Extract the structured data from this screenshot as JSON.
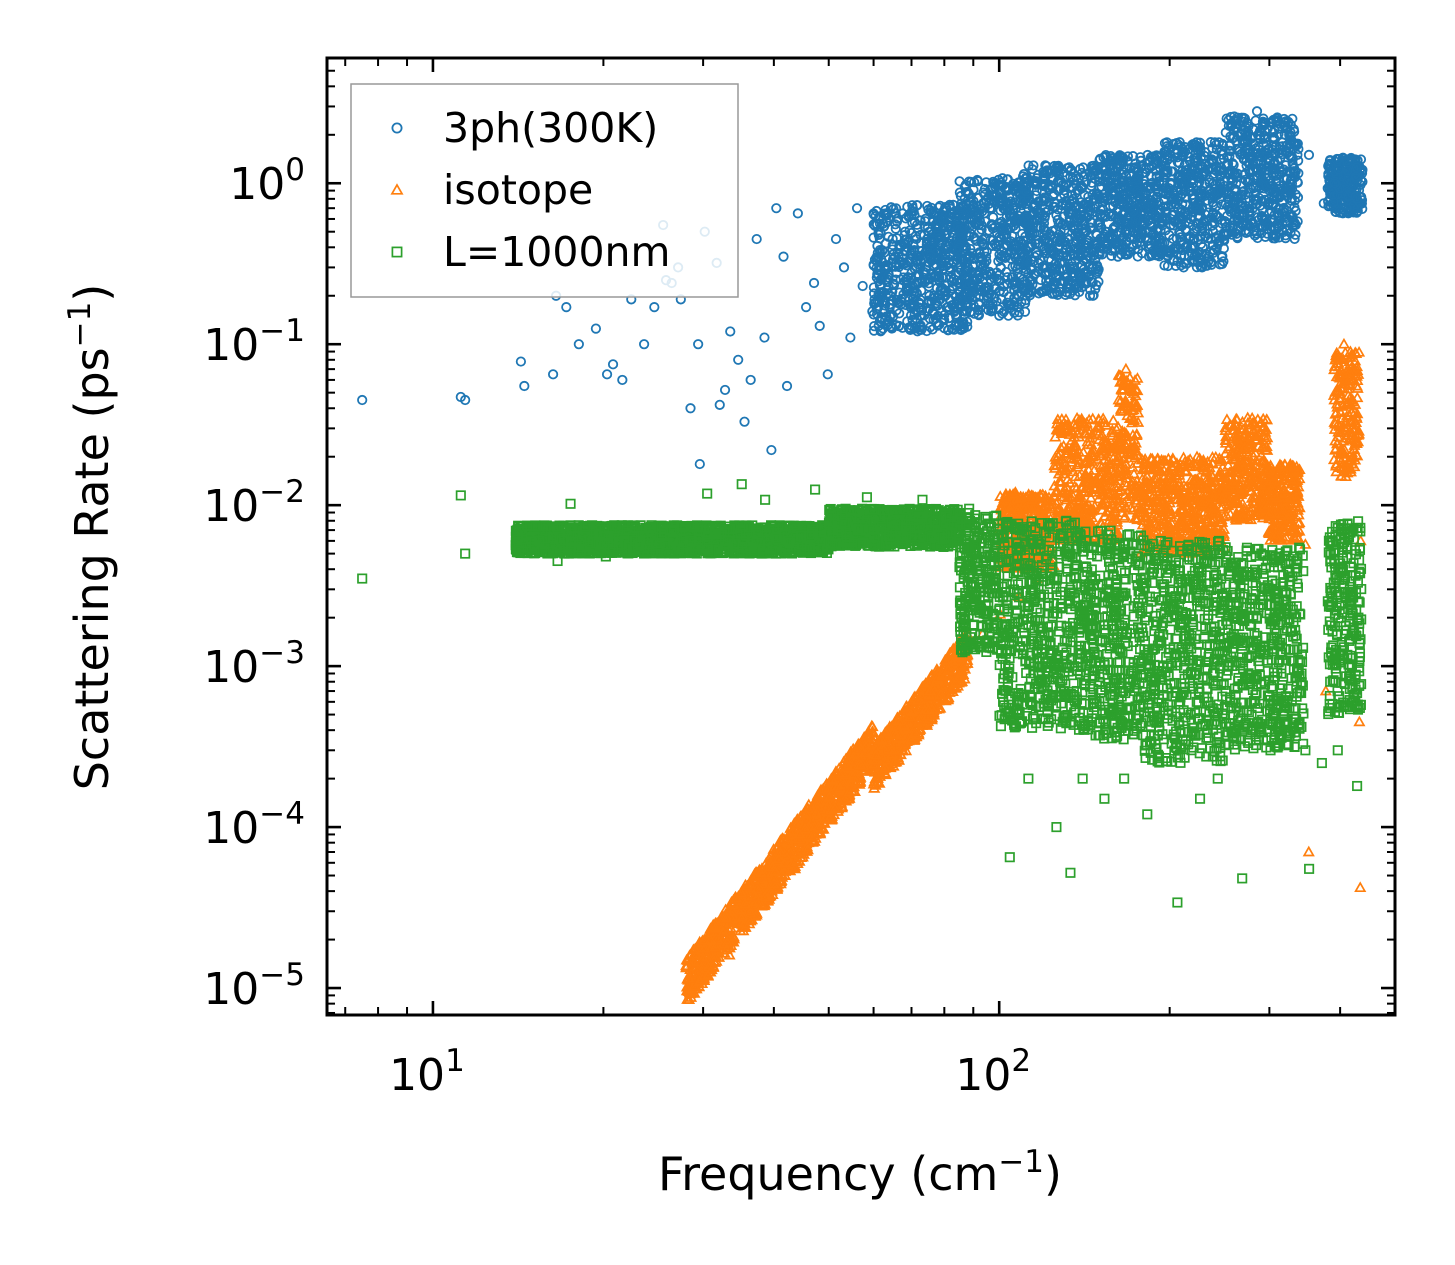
{
  "chart_data": {
    "type": "scatter",
    "xscale": "log",
    "yscale": "log",
    "xlim": [
      6.5,
      500
    ],
    "ylim": [
      6.8e-06,
      6
    ],
    "xlabel": "Frequency (cm",
    "xlabel_sup": "−1",
    "xlabel_end": ")",
    "ylabel": "Scattering Rate (ps",
    "ylabel_sup": "−1",
    "ylabel_end": ")",
    "x_ticks": [
      {
        "base": "10",
        "exp": "1",
        "value": 10
      },
      {
        "base": "10",
        "exp": "2",
        "value": 100
      }
    ],
    "y_ticks": [
      {
        "base": "10",
        "exp": "0",
        "value": 1
      },
      {
        "base": "10",
        "exp": "−1",
        "value": 0.1
      },
      {
        "base": "10",
        "exp": "−2",
        "value": 0.01
      },
      {
        "base": "10",
        "exp": "−3",
        "value": 0.001
      },
      {
        "base": "10",
        "exp": "−4",
        "value": 0.0001
      },
      {
        "base": "10",
        "exp": "−5",
        "value": 1e-05
      }
    ],
    "legend_position": "top-left",
    "series": [
      {
        "name": "3ph(300K)",
        "marker": "circle",
        "color": "#1f77b4",
        "points": [
          [
            7.5,
            0.045
          ],
          [
            11.2,
            0.047
          ],
          [
            11.4,
            0.045
          ],
          [
            14.3,
            0.078
          ],
          [
            14.5,
            0.055
          ],
          [
            16.3,
            0.065
          ],
          [
            16.5,
            0.2
          ],
          [
            17.2,
            0.17
          ],
          [
            18.1,
            0.1
          ],
          [
            19.4,
            0.125
          ],
          [
            20.3,
            0.065
          ],
          [
            20.8,
            0.075
          ],
          [
            21.6,
            0.06
          ],
          [
            22.4,
            0.19
          ],
          [
            23.6,
            0.1
          ],
          [
            24.6,
            0.17
          ],
          [
            25.5,
            0.55
          ],
          [
            25.8,
            0.25
          ],
          [
            26.4,
            0.24
          ],
          [
            27.1,
            0.3
          ],
          [
            27.4,
            0.19
          ],
          [
            28.5,
            0.04
          ],
          [
            29.4,
            0.1
          ],
          [
            29.6,
            0.018
          ],
          [
            30.2,
            0.5
          ],
          [
            31.7,
            0.32
          ],
          [
            32.1,
            0.042
          ],
          [
            32.8,
            0.052
          ],
          [
            33.5,
            0.12
          ],
          [
            34.6,
            0.08
          ],
          [
            35.5,
            0.033
          ],
          [
            36.4,
            0.06
          ],
          [
            37.3,
            0.45
          ],
          [
            38.5,
            0.11
          ],
          [
            39.6,
            0.022
          ],
          [
            40.4,
            0.7
          ],
          [
            41.6,
            0.35
          ],
          [
            42.2,
            0.055
          ],
          [
            44.1,
            0.65
          ],
          [
            45.6,
            0.17
          ],
          [
            47.1,
            0.24
          ],
          [
            48.2,
            0.13
          ],
          [
            49.8,
            0.065
          ],
          [
            51.5,
            0.45
          ],
          [
            53.2,
            0.3
          ],
          [
            54.6,
            0.11
          ],
          [
            56.1,
            0.7
          ],
          [
            57.4,
            0.23
          ],
          [
            59.7,
            0.16
          ],
          [
            61.3,
            0.35
          ],
          [
            63.8,
            0.27
          ],
          [
            66.5,
            0.13
          ],
          [
            68.2,
            0.5
          ],
          [
            72.4,
            0.35
          ],
          [
            75.3,
            0.2
          ],
          [
            79.4,
            0.6
          ],
          [
            84.7,
            0.3
          ],
          [
            90.6,
            0.45
          ],
          [
            96.8,
            0.16
          ],
          [
            103.5,
            0.9
          ],
          [
            113.4,
            0.5
          ],
          [
            121.3,
            0.3
          ],
          [
            133.6,
            1.1
          ],
          [
            146.8,
            0.7
          ],
          [
            162.5,
            0.4
          ],
          [
            175.3,
            0.9
          ],
          [
            189.4,
            0.45
          ],
          [
            211.7,
            0.3
          ],
          [
            236.4,
            1.8
          ],
          [
            262.5,
            2.2
          ],
          [
            285.3,
            2.8
          ],
          [
            301.6,
            1.0
          ],
          [
            336.2,
            1.5
          ],
          [
            352.4,
            1.5
          ],
          [
            374.3,
            0.75
          ],
          [
            391.2,
            1.0
          ],
          [
            412.6,
            1.2
          ],
          [
            428.4,
            0.8
          ]
        ],
        "bands": [
          {
            "xmin": 60,
            "xmax": 88,
            "ylo": 0.12,
            "yhi": 0.75
          },
          {
            "xmin": 85,
            "xmax": 112,
            "ylo": 0.15,
            "yhi": 1.1
          },
          {
            "xmin": 110,
            "xmax": 150,
            "ylo": 0.2,
            "yhi": 1.3
          },
          {
            "xmin": 150,
            "xmax": 195,
            "ylo": 0.35,
            "yhi": 1.5
          },
          {
            "xmin": 195,
            "xmax": 250,
            "ylo": 0.3,
            "yhi": 1.8
          },
          {
            "xmin": 250,
            "xmax": 338,
            "ylo": 0.45,
            "yhi": 2.6
          },
          {
            "xmin": 380,
            "xmax": 438,
            "ylo": 0.65,
            "yhi": 1.45
          }
        ]
      },
      {
        "name": "isotope",
        "marker": "triangle",
        "color": "#ff7f0e",
        "points": [
          [
            28.3,
            1.15e-05
          ],
          [
            30.6,
            1.2e-05
          ],
          [
            33.4,
            1.6e-05
          ],
          [
            36.2,
            2.5e-05
          ],
          [
            39.8,
            3.8e-05
          ],
          [
            43.6,
            5.5e-05
          ],
          [
            47.4,
            9e-05
          ],
          [
            51.3,
            0.00013
          ],
          [
            55.8,
            0.00019
          ],
          [
            60.6,
            0.00028
          ],
          [
            65.4,
            0.00038
          ],
          [
            70.2,
            0.00052
          ],
          [
            75.6,
            0.0007
          ],
          [
            81.3,
            0.00095
          ],
          [
            87.4,
            0.0013
          ],
          [
            93.6,
            0.0016
          ],
          [
            100.4,
            0.0021
          ],
          [
            108.3,
            0.0027
          ],
          [
            116.4,
            0.0035
          ],
          [
            125.6,
            0.008
          ],
          [
            136.3,
            0.015
          ],
          [
            150.2,
            0.012
          ],
          [
            162.5,
            0.045
          ],
          [
            167.4,
            0.07
          ],
          [
            175.6,
            0.009
          ],
          [
            196.2,
            0.008
          ],
          [
            218.4,
            0.009
          ],
          [
            247.6,
            0.011
          ],
          [
            281.3,
            0.02
          ],
          [
            316.5,
            0.007
          ],
          [
            347.3,
            0.0057
          ],
          [
            352.1,
            7e-05
          ],
          [
            377.4,
            0.0007
          ],
          [
            392.1,
            0.025
          ],
          [
            406.3,
            0.1
          ],
          [
            415.4,
            0.06
          ],
          [
            425.3,
            0.025
          ],
          [
            434.8,
            0.006
          ],
          [
            434.1,
            4.2e-05
          ],
          [
            432.6,
            0.00045
          ]
        ],
        "bands": [
          {
            "xmin": 28,
            "xmax": 60,
            "ylo": 1.1e-05,
            "yhi": 0.00032,
            "trend": true
          },
          {
            "xmin": 60,
            "xmax": 88,
            "ylo": 0.00023,
            "yhi": 0.0012,
            "trend": true
          },
          {
            "xmin": 100,
            "xmax": 125,
            "ylo": 0.004,
            "yhi": 0.012
          },
          {
            "xmin": 125,
            "xmax": 162,
            "ylo": 0.006,
            "yhi": 0.035
          },
          {
            "xmin": 162,
            "xmax": 176,
            "ylo": 0.008,
            "yhi": 0.065
          },
          {
            "xmin": 178,
            "xmax": 250,
            "ylo": 0.005,
            "yhi": 0.02
          },
          {
            "xmin": 250,
            "xmax": 298,
            "ylo": 0.008,
            "yhi": 0.035
          },
          {
            "xmin": 298,
            "xmax": 340,
            "ylo": 0.006,
            "yhi": 0.018
          },
          {
            "xmin": 390,
            "xmax": 432,
            "ylo": 0.015,
            "yhi": 0.09
          }
        ]
      },
      {
        "name": "L=1000nm",
        "marker": "square",
        "color": "#2ca02c",
        "points": [
          [
            7.5,
            0.0035
          ],
          [
            11.2,
            0.0115
          ],
          [
            11.4,
            0.005
          ],
          [
            14.2,
            0.0052
          ],
          [
            14.6,
            0.0058
          ],
          [
            15.4,
            0.006
          ],
          [
            16.6,
            0.0045
          ],
          [
            17.5,
            0.0102
          ],
          [
            18.3,
            0.006
          ],
          [
            19.6,
            0.0058
          ],
          [
            20.2,
            0.0048
          ],
          [
            20.9,
            0.0075
          ],
          [
            22.5,
            0.0062
          ],
          [
            24.8,
            0.0058
          ],
          [
            26.4,
            0.007
          ],
          [
            28.6,
            0.006
          ],
          [
            30.5,
            0.0118
          ],
          [
            33.2,
            0.006
          ],
          [
            35.1,
            0.0135
          ],
          [
            38.6,
            0.0108
          ],
          [
            42.4,
            0.006
          ],
          [
            47.3,
            0.0125
          ],
          [
            52.6,
            0.0068
          ],
          [
            58.4,
            0.0112
          ],
          [
            65.5,
            0.0075
          ],
          [
            73.2,
            0.0108
          ],
          [
            80.6,
            0.0085
          ],
          [
            88.5,
            0.0095
          ],
          [
            95.3,
            0.0082
          ],
          [
            101.6,
            0.0006
          ],
          [
            104.4,
            6.5e-05
          ],
          [
            112.6,
            0.0002
          ],
          [
            126.2,
            0.0001
          ],
          [
            133.6,
            5.2e-05
          ],
          [
            140.4,
            0.0002
          ],
          [
            153.4,
            0.00015
          ],
          [
            166.2,
            0.0002
          ],
          [
            182.6,
            0.00012
          ],
          [
            206.4,
            3.4e-05
          ],
          [
            226.3,
            0.00015
          ],
          [
            243.2,
            0.0002
          ],
          [
            256.4,
            0.0025
          ],
          [
            268.6,
            4.8e-05
          ],
          [
            301.4,
            0.0003
          ],
          [
            347.3,
            0.0003
          ],
          [
            352.6,
            5.5e-05
          ],
          [
            371.4,
            0.00025
          ],
          [
            396.2,
            0.0003
          ],
          [
            428.6,
            0.00018
          ],
          [
            433.4,
            0.00055
          ]
        ],
        "bands": [
          {
            "xmin": 14,
            "xmax": 50,
            "ylo": 0.005,
            "yhi": 0.0075
          },
          {
            "xmin": 50,
            "xmax": 85,
            "ylo": 0.0055,
            "yhi": 0.0095
          },
          {
            "xmin": 85,
            "xmax": 100,
            "ylo": 0.0012,
            "yhi": 0.009
          },
          {
            "xmin": 100,
            "xmax": 140,
            "ylo": 0.0004,
            "yhi": 0.008
          },
          {
            "xmin": 140,
            "xmax": 180,
            "ylo": 0.00035,
            "yhi": 0.007
          },
          {
            "xmin": 180,
            "xmax": 250,
            "ylo": 0.00025,
            "yhi": 0.006
          },
          {
            "xmin": 250,
            "xmax": 345,
            "ylo": 0.0003,
            "yhi": 0.0055
          },
          {
            "xmin": 380,
            "xmax": 436,
            "ylo": 0.0005,
            "yhi": 0.008
          }
        ]
      }
    ]
  }
}
